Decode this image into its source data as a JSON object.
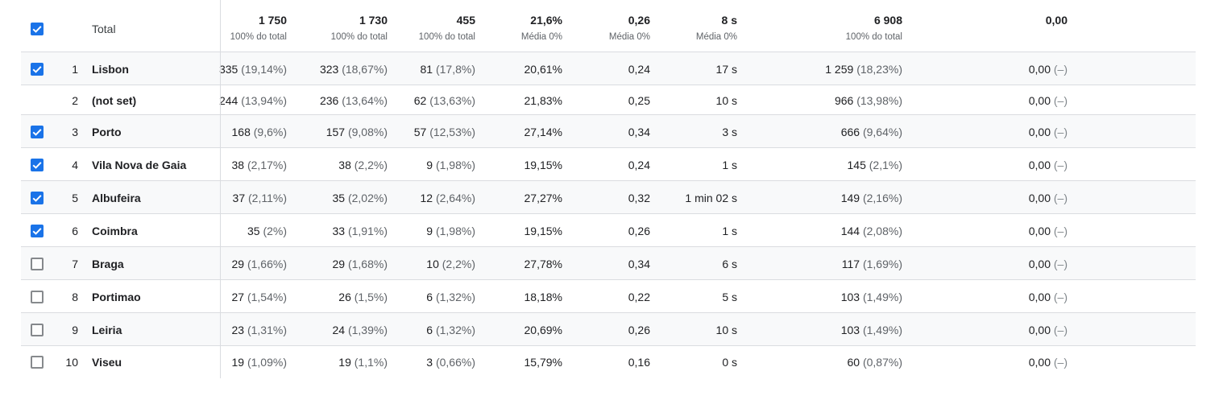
{
  "header": {
    "label": "Total",
    "checked": true,
    "columns": [
      {
        "value": "1 750",
        "sub": "100% do total"
      },
      {
        "value": "1 730",
        "sub": "100% do total"
      },
      {
        "value": "455",
        "sub": "100% do total"
      },
      {
        "value": "21,6%",
        "sub": "Média 0%"
      },
      {
        "value": "0,26",
        "sub": "Média 0%"
      },
      {
        "value": "8 s",
        "sub": "Média 0%"
      },
      {
        "value": "6 908",
        "sub": "100% do total"
      },
      {
        "value": "0,00",
        "sub": ""
      }
    ]
  },
  "rows": [
    {
      "rank": "1",
      "city": "Lisbon",
      "checked": true,
      "c1": "335",
      "c1p": "(19,14%)",
      "c2": "323",
      "c2p": "(18,67%)",
      "c3": "81",
      "c3p": "(17,8%)",
      "c4": "20,61%",
      "c5": "0,24",
      "c6": "17 s",
      "c7": "1 259",
      "c7p": "(18,23%)",
      "c8": "0,00",
      "c8p": "(–)"
    },
    {
      "rank": "2",
      "city": "(not set)",
      "checked": null,
      "c1": "244",
      "c1p": "(13,94%)",
      "c2": "236",
      "c2p": "(13,64%)",
      "c3": "62",
      "c3p": "(13,63%)",
      "c4": "21,83%",
      "c5": "0,25",
      "c6": "10 s",
      "c7": "966",
      "c7p": "(13,98%)",
      "c8": "0,00",
      "c8p": "(–)"
    },
    {
      "rank": "3",
      "city": "Porto",
      "checked": true,
      "c1": "168",
      "c1p": "(9,6%)",
      "c2": "157",
      "c2p": "(9,08%)",
      "c3": "57",
      "c3p": "(12,53%)",
      "c4": "27,14%",
      "c5": "0,34",
      "c6": "3 s",
      "c7": "666",
      "c7p": "(9,64%)",
      "c8": "0,00",
      "c8p": "(–)"
    },
    {
      "rank": "4",
      "city": "Vila Nova de Gaia",
      "checked": true,
      "c1": "38",
      "c1p": "(2,17%)",
      "c2": "38",
      "c2p": "(2,2%)",
      "c3": "9",
      "c3p": "(1,98%)",
      "c4": "19,15%",
      "c5": "0,24",
      "c6": "1 s",
      "c7": "145",
      "c7p": "(2,1%)",
      "c8": "0,00",
      "c8p": "(–)"
    },
    {
      "rank": "5",
      "city": "Albufeira",
      "checked": true,
      "c1": "37",
      "c1p": "(2,11%)",
      "c2": "35",
      "c2p": "(2,02%)",
      "c3": "12",
      "c3p": "(2,64%)",
      "c4": "27,27%",
      "c5": "0,32",
      "c6": "1 min 02 s",
      "c7": "149",
      "c7p": "(2,16%)",
      "c8": "0,00",
      "c8p": "(–)"
    },
    {
      "rank": "6",
      "city": "Coimbra",
      "checked": true,
      "c1": "35",
      "c1p": "(2%)",
      "c2": "33",
      "c2p": "(1,91%)",
      "c3": "9",
      "c3p": "(1,98%)",
      "c4": "19,15%",
      "c5": "0,26",
      "c6": "1 s",
      "c7": "144",
      "c7p": "(2,08%)",
      "c8": "0,00",
      "c8p": "(–)"
    },
    {
      "rank": "7",
      "city": "Braga",
      "checked": false,
      "c1": "29",
      "c1p": "(1,66%)",
      "c2": "29",
      "c2p": "(1,68%)",
      "c3": "10",
      "c3p": "(2,2%)",
      "c4": "27,78%",
      "c5": "0,34",
      "c6": "6 s",
      "c7": "117",
      "c7p": "(1,69%)",
      "c8": "0,00",
      "c8p": "(–)"
    },
    {
      "rank": "8",
      "city": "Portimao",
      "checked": false,
      "c1": "27",
      "c1p": "(1,54%)",
      "c2": "26",
      "c2p": "(1,5%)",
      "c3": "6",
      "c3p": "(1,32%)",
      "c4": "18,18%",
      "c5": "0,22",
      "c6": "5 s",
      "c7": "103",
      "c7p": "(1,49%)",
      "c8": "0,00",
      "c8p": "(–)"
    },
    {
      "rank": "9",
      "city": "Leiria",
      "checked": false,
      "c1": "23",
      "c1p": "(1,31%)",
      "c2": "24",
      "c2p": "(1,39%)",
      "c3": "6",
      "c3p": "(1,32%)",
      "c4": "20,69%",
      "c5": "0,26",
      "c6": "10 s",
      "c7": "103",
      "c7p": "(1,49%)",
      "c8": "0,00",
      "c8p": "(–)"
    },
    {
      "rank": "10",
      "city": "Viseu",
      "checked": false,
      "c1": "19",
      "c1p": "(1,09%)",
      "c2": "19",
      "c2p": "(1,1%)",
      "c3": "3",
      "c3p": "(0,66%)",
      "c4": "15,79%",
      "c5": "0,16",
      "c6": "0 s",
      "c7": "60",
      "c7p": "(0,87%)",
      "c8": "0,00",
      "c8p": "(–)"
    }
  ],
  "colors": {
    "accent": "#1a73e8",
    "divider": "#dadce0",
    "row_alt": "#f8f9fa",
    "muted_text": "#5f6368"
  }
}
